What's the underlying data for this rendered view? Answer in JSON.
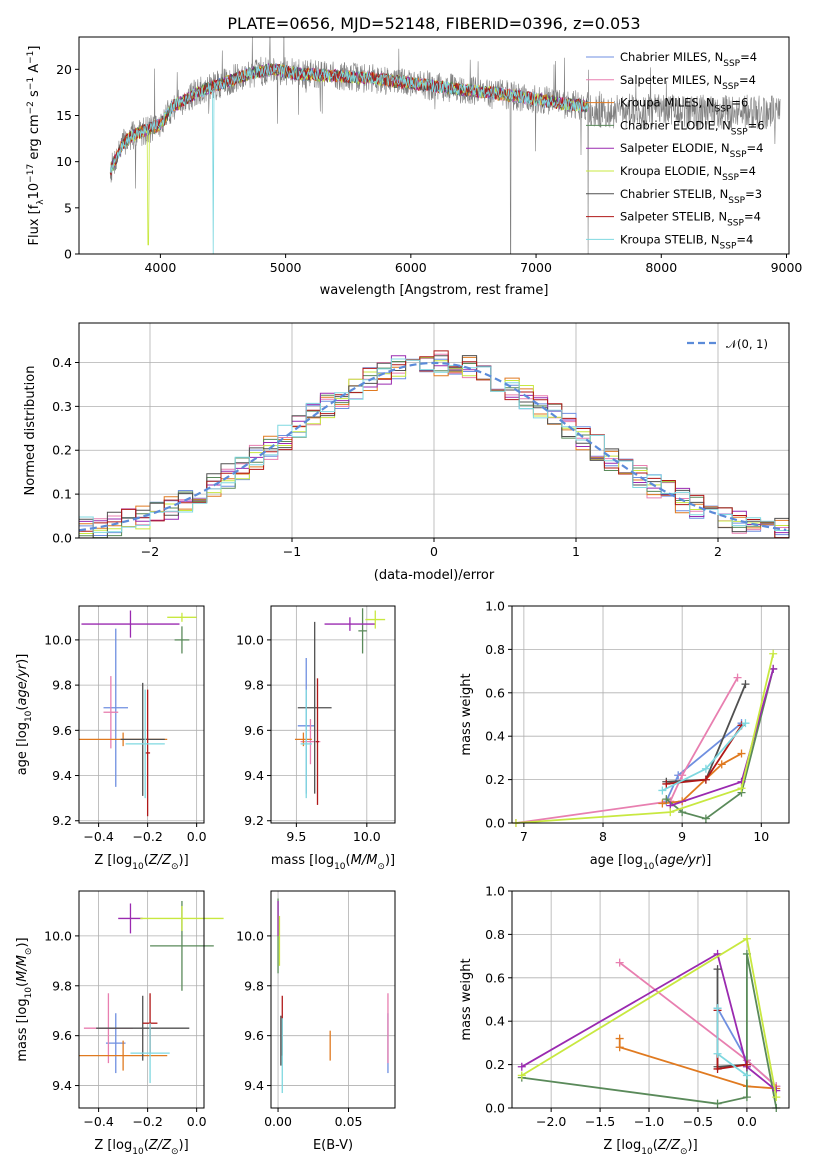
{
  "title": "PLATE=0656, MJD=52148, FIBERID=0396, z=0.053",
  "colors": {
    "chabrier_miles": "#6f8fe0",
    "salpeter_miles": "#e87fb0",
    "kroupa_miles": "#e07a20",
    "chabrier_elodie": "#5a8a5a",
    "salpeter_elodie": "#9a2ab0",
    "kroupa_elodie": "#c8e840",
    "chabrier_stelib": "#505050",
    "salpeter_stelib": "#b01818",
    "kroupa_stelib": "#7fd8e0",
    "normal": "#5b8bd9"
  },
  "legend_spectrum": [
    {
      "key": "chabrier_miles",
      "label": "Chabrier MILES, N",
      "n": "=4"
    },
    {
      "key": "salpeter_miles",
      "label": "Salpeter MILES, N",
      "n": "=4"
    },
    {
      "key": "kroupa_miles",
      "label": "Kroupa MILES, N",
      "n": "=6"
    },
    {
      "key": "chabrier_elodie",
      "label": "Chabrier ELODIE, N",
      "n": "=6"
    },
    {
      "key": "salpeter_elodie",
      "label": "Salpeter ELODIE, N",
      "n": "=4"
    },
    {
      "key": "kroupa_elodie",
      "label": "Kroupa ELODIE, N",
      "n": "=4"
    },
    {
      "key": "chabrier_stelib",
      "label": "Chabrier STELIB, N",
      "n": "=3"
    },
    {
      "key": "salpeter_stelib",
      "label": "Salpeter STELIB, N",
      "n": "=4"
    },
    {
      "key": "kroupa_stelib",
      "label": "Kroupa STELIB, N",
      "n": "=4"
    }
  ],
  "legend_sub": "SSP",
  "chart_data": [
    {
      "id": "spectrum",
      "type": "line",
      "xlabel": "wavelength [Angstrom, rest frame]",
      "ylabel": "Flux [f",
      "xlim": [
        3350,
        9020
      ],
      "ylim": [
        0,
        23.5
      ],
      "xticks": [
        4000,
        5000,
        6000,
        7000,
        8000,
        9000
      ],
      "yticks": [
        0,
        5,
        10,
        15,
        20
      ],
      "continuum": [
        [
          3600,
          9
        ],
        [
          3700,
          12
        ],
        [
          3800,
          13
        ],
        [
          3900,
          13.5
        ],
        [
          4000,
          14
        ],
        [
          4100,
          16
        ],
        [
          4300,
          17.5
        ],
        [
          4500,
          18.5
        ],
        [
          4700,
          19.5
        ],
        [
          4900,
          20
        ],
        [
          5100,
          19.5
        ],
        [
          5400,
          19.3
        ],
        [
          5700,
          19
        ],
        [
          6000,
          18.5
        ],
        [
          6300,
          18
        ],
        [
          6600,
          17.5
        ],
        [
          6900,
          17
        ],
        [
          7200,
          16.3
        ],
        [
          7420,
          16
        ]
      ]
    },
    {
      "id": "residuals",
      "type": "histogram",
      "xlabel": "(data-model)/error",
      "ylabel": "Normed distribution",
      "xlim": [
        -2.5,
        2.5
      ],
      "ylim": [
        0,
        0.49
      ],
      "xticks": [
        -2,
        -1,
        0,
        1,
        2
      ],
      "yticks": [
        0.0,
        0.1,
        0.2,
        0.3,
        0.4
      ],
      "normal_label": "𝒩(0, 1)"
    },
    {
      "id": "age_vs_Z",
      "type": "errorbar",
      "xlabel": "Z [log",
      "ylabel": "age  [log",
      "xlim": [
        -0.48,
        0.03
      ],
      "ylim": [
        9.19,
        10.15
      ],
      "xticks": [
        -0.4,
        -0.2,
        0.0
      ],
      "yticks": [
        9.2,
        9.4,
        9.6,
        9.8,
        10.0
      ],
      "points": [
        {
          "key": "chabrier_miles",
          "x": -0.33,
          "xerr": 0.05,
          "y": 9.7,
          "yerr": 0.35
        },
        {
          "key": "salpeter_miles",
          "x": -0.35,
          "xerr": 0.03,
          "y": 9.68,
          "yerr": 0.16
        },
        {
          "key": "kroupa_miles",
          "x": -0.3,
          "xerr": 0.18,
          "y": 9.56,
          "yerr": 0.03
        },
        {
          "key": "chabrier_elodie",
          "x": -0.06,
          "xerr": 0.03,
          "y": 10.0,
          "yerr": 0.06
        },
        {
          "key": "salpeter_elodie",
          "x": -0.27,
          "xerr": 0.2,
          "y": 10.07,
          "yerr": 0.06
        },
        {
          "key": "kroupa_elodie",
          "x": -0.06,
          "xerr": 0.06,
          "y": 10.1,
          "yerr": 0.02
        },
        {
          "key": "chabrier_stelib",
          "x": -0.22,
          "xerr": 0.09,
          "y": 9.56,
          "yerr": 0.25
        },
        {
          "key": "salpeter_stelib",
          "x": -0.2,
          "xerr": 0.01,
          "y": 9.5,
          "yerr": 0.28
        },
        {
          "key": "kroupa_stelib",
          "x": -0.21,
          "xerr": 0.08,
          "y": 9.54,
          "yerr": 0.24
        }
      ]
    },
    {
      "id": "age_vs_mass",
      "type": "errorbar",
      "xlabel": "mass [log",
      "ylabel": "",
      "xlim": [
        9.32,
        10.2
      ],
      "ylim": [
        9.19,
        10.15
      ],
      "xticks": [
        9.5,
        10.0
      ],
      "yticks": [
        9.2,
        9.4,
        9.6,
        9.8,
        10.0
      ],
      "points": [
        {
          "key": "chabrier_miles",
          "x": 9.57,
          "xerr": 0.06,
          "y": 9.62,
          "yerr": 0.3
        },
        {
          "key": "salpeter_miles",
          "x": 9.6,
          "xerr": 0.07,
          "y": 9.55,
          "yerr": 0.1
        },
        {
          "key": "kroupa_miles",
          "x": 9.55,
          "xerr": 0.06,
          "y": 9.56,
          "yerr": 0.03
        },
        {
          "key": "chabrier_elodie",
          "x": 9.97,
          "xerr": 0.03,
          "y": 10.04,
          "yerr": 0.1
        },
        {
          "key": "salpeter_elodie",
          "x": 9.88,
          "xerr": 0.18,
          "y": 10.07,
          "yerr": 0.03
        },
        {
          "key": "kroupa_elodie",
          "x": 10.06,
          "xerr": 0.07,
          "y": 10.09,
          "yerr": 0.04
        },
        {
          "key": "chabrier_stelib",
          "x": 9.63,
          "xerr": 0.12,
          "y": 9.7,
          "yerr": 0.38
        },
        {
          "key": "salpeter_stelib",
          "x": 9.65,
          "xerr": 0.01,
          "y": 9.55,
          "yerr": 0.28
        },
        {
          "key": "kroupa_stelib",
          "x": 9.57,
          "xerr": 0.04,
          "y": 9.54,
          "yerr": 0.24
        }
      ]
    },
    {
      "id": "mw_vs_age",
      "type": "line",
      "xlabel": "age  [log",
      "ylabel": "mass weight",
      "xlim": [
        6.85,
        10.35
      ],
      "ylim": [
        0,
        1.0
      ],
      "xticks": [
        7,
        8,
        9,
        10
      ],
      "yticks": [
        0.0,
        0.2,
        0.4,
        0.6,
        0.8,
        1.0
      ],
      "series": [
        {
          "key": "chabrier_miles",
          "points": [
            [
              8.8,
              0.1
            ],
            [
              8.95,
              0.22
            ],
            [
              9.75,
              0.46
            ]
          ]
        },
        {
          "key": "salpeter_miles",
          "points": [
            [
              6.9,
              0.0
            ],
            [
              8.85,
              0.1
            ],
            [
              9.0,
              0.22
            ],
            [
              9.7,
              0.67
            ]
          ]
        },
        {
          "key": "kroupa_miles",
          "points": [
            [
              8.75,
              0.09
            ],
            [
              9.0,
              0.1
            ],
            [
              9.5,
              0.27
            ],
            [
              9.75,
              0.32
            ]
          ]
        },
        {
          "key": "chabrier_elodie",
          "points": [
            [
              8.8,
              0.11
            ],
            [
              9.0,
              0.05
            ],
            [
              9.3,
              0.02
            ],
            [
              9.75,
              0.14
            ],
            [
              10.15,
              0.71
            ]
          ]
        },
        {
          "key": "salpeter_elodie",
          "points": [
            [
              8.85,
              0.08
            ],
            [
              9.75,
              0.19
            ],
            [
              10.15,
              0.71
            ]
          ]
        },
        {
          "key": "kroupa_elodie",
          "points": [
            [
              6.9,
              0.0
            ],
            [
              8.85,
              0.05
            ],
            [
              9.75,
              0.16
            ],
            [
              10.15,
              0.78
            ]
          ]
        },
        {
          "key": "chabrier_stelib",
          "points": [
            [
              8.8,
              0.19
            ],
            [
              9.3,
              0.2
            ],
            [
              9.8,
              0.64
            ]
          ]
        },
        {
          "key": "salpeter_stelib",
          "points": [
            [
              8.8,
              0.18
            ],
            [
              9.3,
              0.2
            ],
            [
              9.75,
              0.45
            ]
          ]
        },
        {
          "key": "kroupa_stelib",
          "points": [
            [
              8.75,
              0.15
            ],
            [
              9.3,
              0.25
            ],
            [
              9.8,
              0.46
            ]
          ]
        }
      ]
    },
    {
      "id": "mass_vs_Z",
      "type": "errorbar",
      "xlabel": "Z [log",
      "ylabel": "mass [log",
      "xlim": [
        -0.48,
        0.03
      ],
      "ylim": [
        9.31,
        10.18
      ],
      "xticks": [
        -0.4,
        -0.2,
        0.0
      ],
      "yticks": [
        9.4,
        9.6,
        9.8,
        10.0
      ],
      "points": [
        {
          "key": "chabrier_miles",
          "x": -0.33,
          "xerr": 0.04,
          "y": 9.57,
          "yerr": 0.12
        },
        {
          "key": "salpeter_miles",
          "x": -0.36,
          "xerr": 0.1,
          "y": 9.63,
          "yerr": 0.14
        },
        {
          "key": "kroupa_miles",
          "x": -0.3,
          "xerr": 0.18,
          "y": 9.52,
          "yerr": 0.06
        },
        {
          "key": "chabrier_elodie",
          "x": -0.06,
          "xerr": 0.13,
          "y": 9.96,
          "yerr": 0.18
        },
        {
          "key": "salpeter_elodie",
          "x": -0.27,
          "xerr": 0.05,
          "y": 10.07,
          "yerr": 0.06
        },
        {
          "key": "kroupa_elodie",
          "x": -0.06,
          "xerr": 0.17,
          "y": 10.07,
          "yerr": 0.05
        },
        {
          "key": "chabrier_stelib",
          "x": -0.22,
          "xerr": 0.19,
          "y": 9.63,
          "yerr": 0.13
        },
        {
          "key": "salpeter_stelib",
          "x": -0.19,
          "xerr": 0.03,
          "y": 9.65,
          "yerr": 0.12
        },
        {
          "key": "kroupa_stelib",
          "x": -0.19,
          "xerr": 0.08,
          "y": 9.53,
          "yerr": 0.12
        }
      ]
    },
    {
      "id": "mass_vs_EBV",
      "type": "errorbar",
      "xlabel": "E(B-V)",
      "ylabel": "",
      "xlim": [
        -0.005,
        0.083
      ],
      "ylim": [
        9.31,
        10.18
      ],
      "xticks": [
        0.0,
        0.05
      ],
      "yticks": [
        9.4,
        9.6,
        9.8,
        10.0
      ],
      "points": [
        {
          "key": "chabrier_miles",
          "x": 0.078,
          "xerr": 0,
          "y": 9.57,
          "yerr": 0.12
        },
        {
          "key": "salpeter_miles",
          "x": 0.078,
          "xerr": 0,
          "y": 9.63,
          "yerr": 0.14
        },
        {
          "key": "kroupa_miles",
          "x": 0.037,
          "xerr": 0,
          "y": 9.56,
          "yerr": 0.06
        },
        {
          "key": "chabrier_elodie",
          "x": 0.0,
          "xerr": 0,
          "y": 10.0,
          "yerr": 0.15
        },
        {
          "key": "salpeter_elodie",
          "x": 0.0,
          "xerr": 0,
          "y": 10.07,
          "yerr": 0.07
        },
        {
          "key": "kroupa_elodie",
          "x": 0.001,
          "xerr": 0,
          "y": 9.98,
          "yerr": 0.1
        },
        {
          "key": "chabrier_stelib",
          "x": 0.002,
          "xerr": 0,
          "y": 9.58,
          "yerr": 0.1
        },
        {
          "key": "salpeter_stelib",
          "x": 0.003,
          "xerr": 0,
          "y": 9.64,
          "yerr": 0.12
        },
        {
          "key": "kroupa_stelib",
          "x": 0.003,
          "xerr": 0,
          "y": 9.52,
          "yerr": 0.15
        }
      ]
    },
    {
      "id": "mw_vs_Z",
      "type": "line",
      "xlabel": "Z [log",
      "ylabel": "mass weight",
      "xlim": [
        -2.4,
        0.43
      ],
      "ylim": [
        0,
        1.0
      ],
      "xticks": [
        -2.0,
        -1.5,
        -1.0,
        -0.5,
        0.0
      ],
      "yticks": [
        0.0,
        0.2,
        0.4,
        0.6,
        0.8,
        1.0
      ],
      "series": [
        {
          "key": "chabrier_miles",
          "points": [
            [
              -0.3,
              0.46
            ],
            [
              0.0,
              0.22
            ],
            [
              0.3,
              0.1
            ]
          ]
        },
        {
          "key": "salpeter_miles",
          "points": [
            [
              -1.3,
              0.67
            ],
            [
              0.0,
              0.22
            ],
            [
              0.3,
              0.1
            ]
          ]
        },
        {
          "key": "kroupa_miles",
          "points": [
            [
              -1.3,
              0.32
            ],
            [
              -1.3,
              0.28
            ],
            [
              0.0,
              0.1
            ],
            [
              0.3,
              0.09
            ]
          ]
        },
        {
          "key": "chabrier_elodie",
          "points": [
            [
              -2.3,
              0.14
            ],
            [
              -0.3,
              0.02
            ],
            [
              0.0,
              0.05
            ],
            [
              0.0,
              0.71
            ],
            [
              0.3,
              0.0
            ]
          ]
        },
        {
          "key": "salpeter_elodie",
          "points": [
            [
              -2.3,
              0.19
            ],
            [
              -0.3,
              0.71
            ],
            [
              0.0,
              0.19
            ],
            [
              0.3,
              0.08
            ]
          ]
        },
        {
          "key": "kroupa_elodie",
          "points": [
            [
              -2.3,
              0.15
            ],
            [
              0.0,
              0.78
            ],
            [
              0.3,
              0.05
            ]
          ]
        },
        {
          "key": "chabrier_stelib",
          "points": [
            [
              -0.3,
              0.64
            ],
            [
              -0.3,
              0.19
            ],
            [
              0.0,
              0.2
            ]
          ]
        },
        {
          "key": "salpeter_stelib",
          "points": [
            [
              -0.3,
              0.45
            ],
            [
              -0.3,
              0.18
            ],
            [
              0.0,
              0.2
            ]
          ]
        },
        {
          "key": "kroupa_stelib",
          "points": [
            [
              -0.3,
              0.46
            ],
            [
              -0.3,
              0.25
            ],
            [
              0.0,
              0.15
            ]
          ]
        }
      ]
    }
  ]
}
